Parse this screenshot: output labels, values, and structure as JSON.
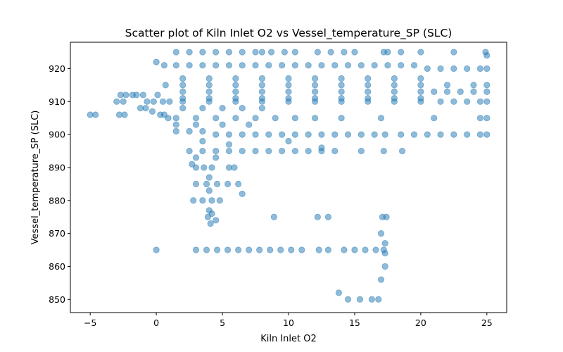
{
  "chart_data": {
    "type": "scatter",
    "title": "Scatter plot of Kiln Inlet O2 vs Vessel_temperature_SP (SLC)",
    "xlabel": "Kiln Inlet O2",
    "ylabel": "Vessel_temperature_SP (SLC)",
    "xlim": [
      -6.5,
      26.5
    ],
    "ylim": [
      846,
      928
    ],
    "xticks": [
      -5,
      0,
      5,
      10,
      15,
      20,
      25
    ],
    "yticks": [
      850,
      860,
      870,
      880,
      890,
      900,
      910,
      920
    ],
    "grid": false,
    "legend": "none",
    "marker_color": "#1f77b4",
    "marker_alpha": 0.5,
    "series": [
      {
        "values": [
          {
            "x": -5.0,
            "y": 906
          },
          {
            "x": -4.6,
            "y": 906
          },
          {
            "x": -3.0,
            "y": 910
          },
          {
            "x": -2.5,
            "y": 910
          },
          {
            "x": -2.8,
            "y": 906
          },
          {
            "x": -2.4,
            "y": 906
          },
          {
            "x": -2.7,
            "y": 912
          },
          {
            "x": -2.3,
            "y": 912
          },
          {
            "x": -1.8,
            "y": 912
          },
          {
            "x": -1.5,
            "y": 912
          },
          {
            "x": -1.0,
            "y": 912
          },
          {
            "x": -0.7,
            "y": 910
          },
          {
            "x": -0.2,
            "y": 910
          },
          {
            "x": 0.1,
            "y": 912
          },
          {
            "x": -1.2,
            "y": 908
          },
          {
            "x": -0.8,
            "y": 908
          },
          {
            "x": -0.3,
            "y": 907
          },
          {
            "x": 0.3,
            "y": 906
          },
          {
            "x": 0.6,
            "y": 906
          },
          {
            "x": 0.9,
            "y": 905
          },
          {
            "x": 0.5,
            "y": 910
          },
          {
            "x": 1.0,
            "y": 910
          },
          {
            "x": 0.0,
            "y": 922
          },
          {
            "x": 0.6,
            "y": 921
          },
          {
            "x": 0.7,
            "y": 915
          },
          {
            "x": 0.0,
            "y": 865
          },
          {
            "x": 1.5,
            "y": 925
          },
          {
            "x": 2.5,
            "y": 925
          },
          {
            "x": 3.5,
            "y": 925
          },
          {
            "x": 4.5,
            "y": 925
          },
          {
            "x": 5.5,
            "y": 925
          },
          {
            "x": 6.5,
            "y": 925
          },
          {
            "x": 7.5,
            "y": 925
          },
          {
            "x": 8.0,
            "y": 925
          },
          {
            "x": 8.7,
            "y": 925
          },
          {
            "x": 9.7,
            "y": 925
          },
          {
            "x": 10.5,
            "y": 925
          },
          {
            "x": 12.2,
            "y": 925
          },
          {
            "x": 13.2,
            "y": 925
          },
          {
            "x": 14.2,
            "y": 925
          },
          {
            "x": 15.0,
            "y": 925
          },
          {
            "x": 17.2,
            "y": 925
          },
          {
            "x": 17.5,
            "y": 925
          },
          {
            "x": 18.5,
            "y": 925
          },
          {
            "x": 20.0,
            "y": 925
          },
          {
            "x": 22.5,
            "y": 925
          },
          {
            "x": 24.9,
            "y": 925
          },
          {
            "x": 25.0,
            "y": 924
          },
          {
            "x": 1.5,
            "y": 921
          },
          {
            "x": 2.5,
            "y": 921
          },
          {
            "x": 3.5,
            "y": 921
          },
          {
            "x": 4.5,
            "y": 921
          },
          {
            "x": 5.5,
            "y": 921
          },
          {
            "x": 6.5,
            "y": 921
          },
          {
            "x": 7.5,
            "y": 921
          },
          {
            "x": 8.5,
            "y": 921
          },
          {
            "x": 9.5,
            "y": 921
          },
          {
            "x": 10.5,
            "y": 921
          },
          {
            "x": 11.5,
            "y": 921
          },
          {
            "x": 12.5,
            "y": 921
          },
          {
            "x": 13.5,
            "y": 921
          },
          {
            "x": 14.5,
            "y": 921
          },
          {
            "x": 15.5,
            "y": 921
          },
          {
            "x": 16.5,
            "y": 921
          },
          {
            "x": 17.5,
            "y": 921
          },
          {
            "x": 18.5,
            "y": 921
          },
          {
            "x": 19.5,
            "y": 921
          },
          {
            "x": 20.5,
            "y": 920
          },
          {
            "x": 21.5,
            "y": 920
          },
          {
            "x": 22.5,
            "y": 920
          },
          {
            "x": 23.5,
            "y": 920
          },
          {
            "x": 24.5,
            "y": 920
          },
          {
            "x": 25.0,
            "y": 920
          },
          {
            "x": 2.0,
            "y": 917
          },
          {
            "x": 4.0,
            "y": 917
          },
          {
            "x": 6.0,
            "y": 917
          },
          {
            "x": 8.0,
            "y": 917
          },
          {
            "x": 10.0,
            "y": 917
          },
          {
            "x": 12.0,
            "y": 917
          },
          {
            "x": 14.0,
            "y": 917
          },
          {
            "x": 16.0,
            "y": 917
          },
          {
            "x": 18.0,
            "y": 917
          },
          {
            "x": 20.0,
            "y": 917
          },
          {
            "x": 2.0,
            "y": 915
          },
          {
            "x": 4.0,
            "y": 915
          },
          {
            "x": 6.0,
            "y": 915
          },
          {
            "x": 8.0,
            "y": 915
          },
          {
            "x": 10.0,
            "y": 915
          },
          {
            "x": 12.0,
            "y": 915
          },
          {
            "x": 14.0,
            "y": 915
          },
          {
            "x": 16.0,
            "y": 915
          },
          {
            "x": 18.0,
            "y": 915
          },
          {
            "x": 20.0,
            "y": 915
          },
          {
            "x": 22.0,
            "y": 915
          },
          {
            "x": 24.0,
            "y": 915
          },
          {
            "x": 25.0,
            "y": 915
          },
          {
            "x": 2.0,
            "y": 913
          },
          {
            "x": 4.0,
            "y": 913
          },
          {
            "x": 6.0,
            "y": 913
          },
          {
            "x": 8.0,
            "y": 913
          },
          {
            "x": 10.0,
            "y": 913
          },
          {
            "x": 12.0,
            "y": 913
          },
          {
            "x": 14.0,
            "y": 913
          },
          {
            "x": 16.0,
            "y": 913
          },
          {
            "x": 18.0,
            "y": 913
          },
          {
            "x": 20.0,
            "y": 913
          },
          {
            "x": 21.0,
            "y": 913
          },
          {
            "x": 22.0,
            "y": 913
          },
          {
            "x": 23.0,
            "y": 913
          },
          {
            "x": 24.0,
            "y": 913
          },
          {
            "x": 25.0,
            "y": 913
          },
          {
            "x": 2.0,
            "y": 911
          },
          {
            "x": 4.0,
            "y": 911
          },
          {
            "x": 6.0,
            "y": 911
          },
          {
            "x": 8.0,
            "y": 911
          },
          {
            "x": 10.0,
            "y": 911
          },
          {
            "x": 12.0,
            "y": 911
          },
          {
            "x": 14.0,
            "y": 911
          },
          {
            "x": 16.0,
            "y": 911
          },
          {
            "x": 18.0,
            "y": 911
          },
          {
            "x": 20.0,
            "y": 911
          },
          {
            "x": 2.0,
            "y": 910
          },
          {
            "x": 4.0,
            "y": 910
          },
          {
            "x": 6.0,
            "y": 910
          },
          {
            "x": 8.0,
            "y": 910
          },
          {
            "x": 10.0,
            "y": 910
          },
          {
            "x": 12.0,
            "y": 910
          },
          {
            "x": 14.0,
            "y": 910
          },
          {
            "x": 16.0,
            "y": 910
          },
          {
            "x": 18.0,
            "y": 910
          },
          {
            "x": 20.0,
            "y": 910
          },
          {
            "x": 21.5,
            "y": 910
          },
          {
            "x": 22.5,
            "y": 910
          },
          {
            "x": 23.5,
            "y": 910
          },
          {
            "x": 24.5,
            "y": 910
          },
          {
            "x": 25.0,
            "y": 910
          },
          {
            "x": 2.0,
            "y": 908
          },
          {
            "x": 3.5,
            "y": 908
          },
          {
            "x": 5.0,
            "y": 908
          },
          {
            "x": 6.5,
            "y": 908
          },
          {
            "x": 8.0,
            "y": 908
          },
          {
            "x": 1.5,
            "y": 905
          },
          {
            "x": 3.0,
            "y": 905
          },
          {
            "x": 4.5,
            "y": 905
          },
          {
            "x": 6.0,
            "y": 905
          },
          {
            "x": 7.5,
            "y": 905
          },
          {
            "x": 9.0,
            "y": 905
          },
          {
            "x": 10.5,
            "y": 905
          },
          {
            "x": 12.0,
            "y": 905
          },
          {
            "x": 14.0,
            "y": 905
          },
          {
            "x": 17.0,
            "y": 905
          },
          {
            "x": 21.0,
            "y": 905
          },
          {
            "x": 24.5,
            "y": 905
          },
          {
            "x": 25.0,
            "y": 905
          },
          {
            "x": 1.5,
            "y": 903
          },
          {
            "x": 3.0,
            "y": 903
          },
          {
            "x": 5.0,
            "y": 903
          },
          {
            "x": 7.0,
            "y": 903
          },
          {
            "x": 1.5,
            "y": 901
          },
          {
            "x": 2.5,
            "y": 901
          },
          {
            "x": 3.5,
            "y": 901
          },
          {
            "x": 4.5,
            "y": 900
          },
          {
            "x": 5.5,
            "y": 900
          },
          {
            "x": 6.5,
            "y": 900
          },
          {
            "x": 7.5,
            "y": 900
          },
          {
            "x": 8.5,
            "y": 900
          },
          {
            "x": 9.5,
            "y": 900
          },
          {
            "x": 10.5,
            "y": 900
          },
          {
            "x": 11.5,
            "y": 900
          },
          {
            "x": 12.5,
            "y": 900
          },
          {
            "x": 13.5,
            "y": 900
          },
          {
            "x": 14.5,
            "y": 900
          },
          {
            "x": 15.5,
            "y": 900
          },
          {
            "x": 16.5,
            "y": 900
          },
          {
            "x": 17.3,
            "y": 900
          },
          {
            "x": 18.5,
            "y": 900
          },
          {
            "x": 19.5,
            "y": 900
          },
          {
            "x": 20.5,
            "y": 900
          },
          {
            "x": 21.5,
            "y": 900
          },
          {
            "x": 22.5,
            "y": 900
          },
          {
            "x": 23.5,
            "y": 900
          },
          {
            "x": 24.5,
            "y": 900
          },
          {
            "x": 25.0,
            "y": 900
          },
          {
            "x": 3.5,
            "y": 898
          },
          {
            "x": 5.5,
            "y": 897
          },
          {
            "x": 10.0,
            "y": 898
          },
          {
            "x": 12.5,
            "y": 896
          },
          {
            "x": 2.5,
            "y": 895
          },
          {
            "x": 3.5,
            "y": 895
          },
          {
            "x": 4.5,
            "y": 895
          },
          {
            "x": 5.5,
            "y": 895
          },
          {
            "x": 6.5,
            "y": 895
          },
          {
            "x": 7.5,
            "y": 895
          },
          {
            "x": 8.5,
            "y": 895
          },
          {
            "x": 9.5,
            "y": 895
          },
          {
            "x": 10.5,
            "y": 895
          },
          {
            "x": 11.5,
            "y": 895
          },
          {
            "x": 12.5,
            "y": 895
          },
          {
            "x": 13.5,
            "y": 895
          },
          {
            "x": 15.5,
            "y": 895
          },
          {
            "x": 17.2,
            "y": 895
          },
          {
            "x": 18.6,
            "y": 895
          },
          {
            "x": 3.0,
            "y": 893
          },
          {
            "x": 4.5,
            "y": 893
          },
          {
            "x": 2.7,
            "y": 891
          },
          {
            "x": 3.0,
            "y": 890
          },
          {
            "x": 3.6,
            "y": 890
          },
          {
            "x": 4.2,
            "y": 890
          },
          {
            "x": 5.5,
            "y": 890
          },
          {
            "x": 5.9,
            "y": 890
          },
          {
            "x": 4.0,
            "y": 887
          },
          {
            "x": 3.0,
            "y": 885
          },
          {
            "x": 3.8,
            "y": 885
          },
          {
            "x": 4.6,
            "y": 885
          },
          {
            "x": 5.4,
            "y": 885
          },
          {
            "x": 6.2,
            "y": 885
          },
          {
            "x": 4.0,
            "y": 883
          },
          {
            "x": 6.5,
            "y": 882
          },
          {
            "x": 2.8,
            "y": 880
          },
          {
            "x": 3.5,
            "y": 880
          },
          {
            "x": 4.2,
            "y": 880
          },
          {
            "x": 4.8,
            "y": 880
          },
          {
            "x": 4.0,
            "y": 877
          },
          {
            "x": 4.2,
            "y": 876
          },
          {
            "x": 3.9,
            "y": 875
          },
          {
            "x": 4.5,
            "y": 874
          },
          {
            "x": 4.1,
            "y": 873
          },
          {
            "x": 8.9,
            "y": 875
          },
          {
            "x": 12.2,
            "y": 875
          },
          {
            "x": 13.0,
            "y": 875
          },
          {
            "x": 17.1,
            "y": 875
          },
          {
            "x": 17.4,
            "y": 875
          },
          {
            "x": 17.0,
            "y": 870
          },
          {
            "x": 17.3,
            "y": 867
          },
          {
            "x": 3.0,
            "y": 865
          },
          {
            "x": 3.8,
            "y": 865
          },
          {
            "x": 4.6,
            "y": 865
          },
          {
            "x": 5.4,
            "y": 865
          },
          {
            "x": 6.2,
            "y": 865
          },
          {
            "x": 7.0,
            "y": 865
          },
          {
            "x": 7.8,
            "y": 865
          },
          {
            "x": 8.6,
            "y": 865
          },
          {
            "x": 9.4,
            "y": 865
          },
          {
            "x": 10.2,
            "y": 865
          },
          {
            "x": 11.0,
            "y": 865
          },
          {
            "x": 12.3,
            "y": 865
          },
          {
            "x": 13.0,
            "y": 865
          },
          {
            "x": 14.2,
            "y": 865
          },
          {
            "x": 15.0,
            "y": 865
          },
          {
            "x": 15.8,
            "y": 865
          },
          {
            "x": 16.6,
            "y": 865
          },
          {
            "x": 17.2,
            "y": 865
          },
          {
            "x": 17.3,
            "y": 864
          },
          {
            "x": 17.3,
            "y": 860
          },
          {
            "x": 17.0,
            "y": 856
          },
          {
            "x": 13.8,
            "y": 852
          },
          {
            "x": 14.5,
            "y": 850
          },
          {
            "x": 15.4,
            "y": 850
          },
          {
            "x": 16.3,
            "y": 850
          },
          {
            "x": 16.8,
            "y": 850
          }
        ]
      }
    ]
  }
}
